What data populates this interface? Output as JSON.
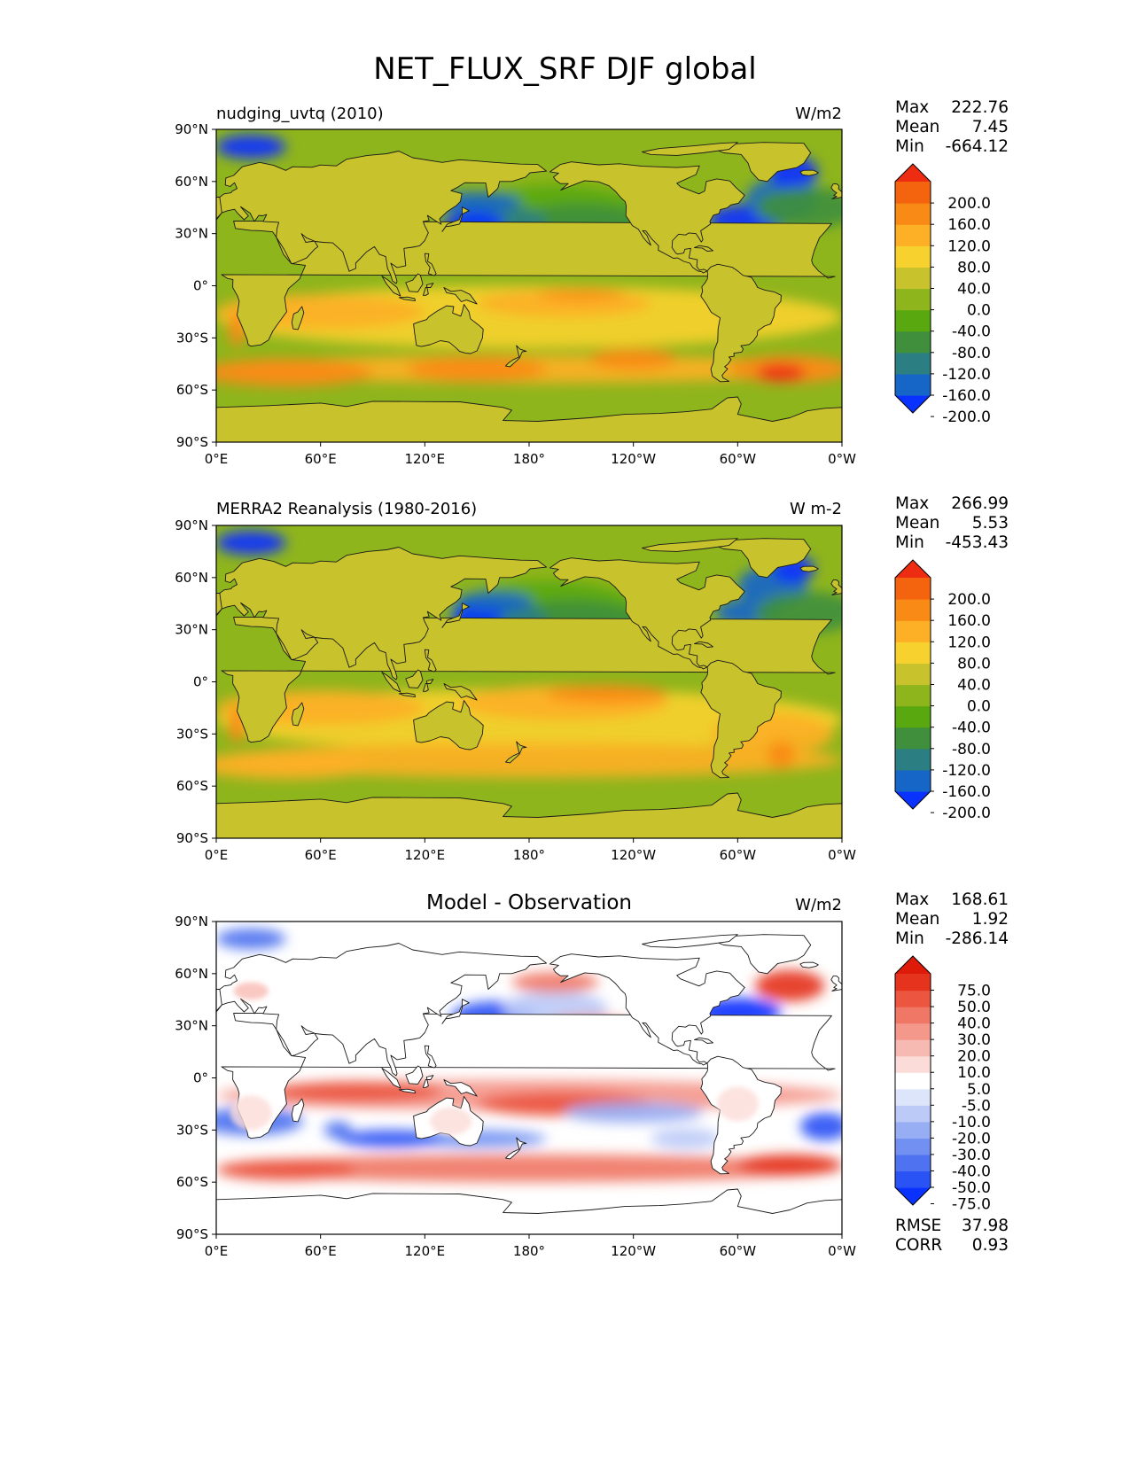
{
  "title": "NET_FLUX_SRF DJF global",
  "panels": [
    {
      "name": "model",
      "title": "nudging_uvtq (2010)",
      "title_style": "left",
      "units": "W/m2",
      "stats": {
        "max_label": "Max",
        "max": "222.76",
        "mean_label": "Mean",
        "mean": "7.45",
        "min_label": "Min",
        "min": "-664.12"
      }
    },
    {
      "name": "obs",
      "title": "MERRA2 Reanalysis (1980-2016)",
      "title_style": "left",
      "units": "W m-2",
      "stats": {
        "max_label": "Max",
        "max": "266.99",
        "mean_label": "Mean",
        "mean": "5.53",
        "min_label": "Min",
        "min": "-453.43"
      }
    },
    {
      "name": "diff",
      "title": "Model - Observation",
      "title_style": "center",
      "units": "W/m2",
      "stats": {
        "max_label": "Max",
        "max": "168.61",
        "mean_label": "Mean",
        "mean": "1.92",
        "min_label": "Min",
        "min": "-286.14"
      },
      "metrics": {
        "rmse_label": "RMSE",
        "rmse": "37.98",
        "corr_label": "CORR",
        "corr": "0.93"
      }
    }
  ],
  "chart_data": {
    "type": "heatmap",
    "projection": "PlateCarree, central longitude 180",
    "x_tick_labels": [
      "0°E",
      "60°E",
      "120°E",
      "180°",
      "120°W",
      "60°W",
      "0°W"
    ],
    "y_tick_labels": [
      "90°N",
      "60°N",
      "30°N",
      "0°",
      "30°S",
      "60°S",
      "90°S"
    ],
    "xlim": [
      0,
      360
    ],
    "ylim": [
      -90,
      90
    ],
    "field_colorbar": {
      "levels": [
        "200.0",
        "160.0",
        "120.0",
        "80.0",
        "40.0",
        "0.0",
        "-40.0",
        "-80.0",
        "-120.0",
        "-160.0",
        "-200.0"
      ],
      "colors_bottom_to_top": [
        "#0a32ff",
        "#1666c8",
        "#2b7f82",
        "#3f8f3d",
        "#59a810",
        "#8fb51d",
        "#c8c22d",
        "#f7d12e",
        "#fdb025",
        "#f98a16",
        "#f4640e",
        "#ee2c12"
      ],
      "extend": "both"
    },
    "diff_colorbar": {
      "levels": [
        "75.0",
        "50.0",
        "40.0",
        "30.0",
        "20.0",
        "10.0",
        "5.0",
        "-5.0",
        "-10.0",
        "-20.0",
        "-30.0",
        "-40.0",
        "-50.0",
        "-75.0"
      ],
      "colors_bottom_to_top": [
        "#0a32ff",
        "#2a53f5",
        "#4f73f0",
        "#7290f2",
        "#98aef4",
        "#bccaf7",
        "#dde5fb",
        "#ffffff",
        "#fbdcd8",
        "#f7bab2",
        "#f4988c",
        "#f07766",
        "#ec5540",
        "#e5331d",
        "#de1a08"
      ],
      "extend": "both"
    },
    "panels": [
      {
        "name": "nudging_uvtq (2010)",
        "field": "NET_FLUX_SRF",
        "season": "DJF",
        "max": 222.76,
        "mean": 7.45,
        "min": -664.12
      },
      {
        "name": "MERRA2 Reanalysis (1980-2016)",
        "field": "NET_FLUX_SRF",
        "season": "DJF",
        "max": 266.99,
        "mean": 5.53,
        "min": -453.43
      },
      {
        "name": "Model - Observation",
        "field": "NET_FLUX_SRF difference",
        "season": "DJF",
        "max": 168.61,
        "mean": 1.92,
        "min": -286.14,
        "rmse": 37.98,
        "corr": 0.93
      }
    ]
  }
}
